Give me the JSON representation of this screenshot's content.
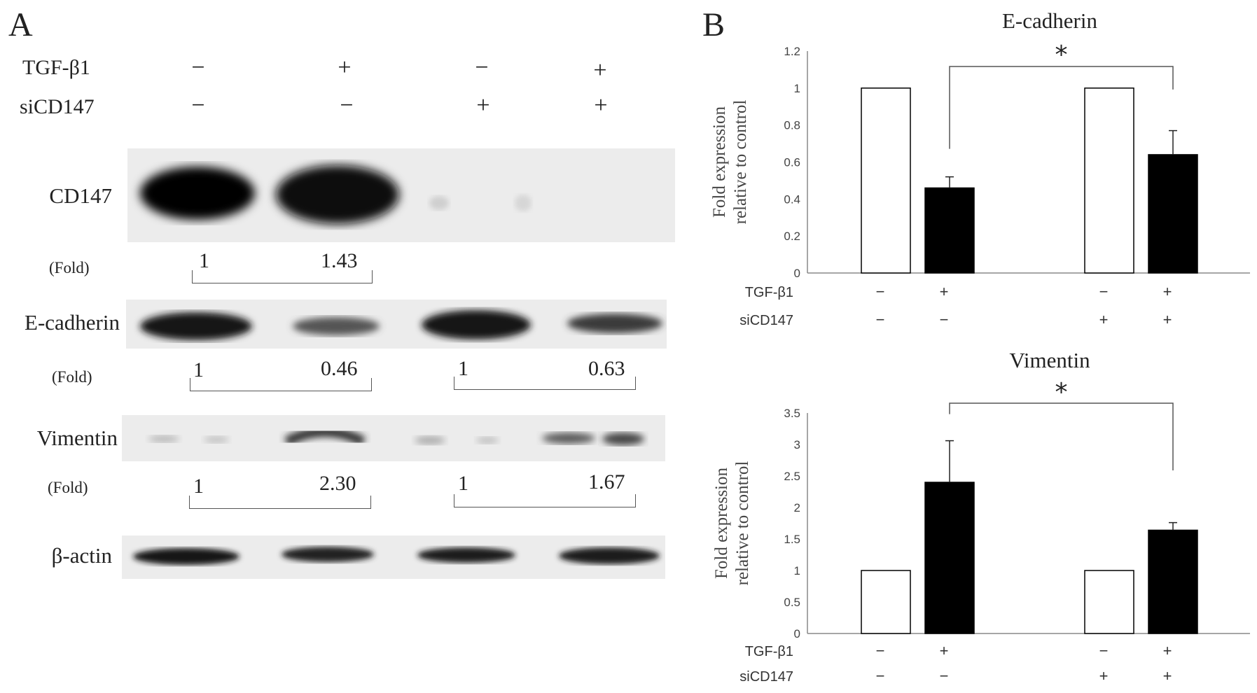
{
  "panel_a": {
    "letter": "A",
    "conditions": [
      {
        "label": "TGF-β1",
        "signs": [
          "−",
          "+",
          "−",
          "+"
        ]
      },
      {
        "label": "siCD147",
        "signs": [
          "−",
          "−",
          "+",
          "+"
        ]
      }
    ],
    "blots": [
      {
        "label": "CD147",
        "fold_label": "(Fold)",
        "fold_groups": [
          [
            "1",
            "1.43"
          ]
        ]
      },
      {
        "label": "E-cadherin",
        "fold_label": "(Fold)",
        "fold_groups": [
          [
            "1",
            "0.46"
          ],
          [
            "1",
            "0.63"
          ]
        ]
      },
      {
        "label": "Vimentin",
        "fold_label": "(Fold)",
        "fold_groups": [
          [
            "1",
            "2.30"
          ],
          [
            "1",
            "1.67"
          ]
        ]
      },
      {
        "label": "β-actin"
      }
    ]
  },
  "panel_b": {
    "letter": "B"
  },
  "chart_data": [
    {
      "type": "bar",
      "title": "E-cadherin",
      "ylabel_line1": "Fold expression",
      "ylabel_line2": "relative to control",
      "ylim": [
        0,
        1.2
      ],
      "yticks": [
        "0",
        "0.2",
        "0.4",
        "0.6",
        "0.8",
        "1",
        "1.2"
      ],
      "values": [
        1,
        0.46,
        1,
        0.64
      ],
      "errors": [
        0,
        0.06,
        0,
        0.13
      ],
      "bar_colors": [
        "#ffffff",
        "#000000",
        "#ffffff",
        "#000000"
      ],
      "significance": "*",
      "condition_rows": [
        {
          "label": "TGF-β1",
          "signs": [
            "−",
            "+",
            "−",
            "+"
          ]
        },
        {
          "label": "siCD147",
          "signs": [
            "−",
            "−",
            "+",
            "+"
          ]
        }
      ]
    },
    {
      "type": "bar",
      "title": "Vimentin",
      "ylabel_line1": "Fold expression",
      "ylabel_line2": "relative to control",
      "ylim": [
        0,
        3.5
      ],
      "yticks": [
        "0",
        "0.5",
        "1",
        "1.5",
        "2",
        "2.5",
        "3",
        "3.5"
      ],
      "values": [
        1,
        2.4,
        1,
        1.64
      ],
      "errors": [
        0,
        0.66,
        0,
        0.12
      ],
      "bar_colors": [
        "#ffffff",
        "#000000",
        "#ffffff",
        "#000000"
      ],
      "significance": "*",
      "condition_rows": [
        {
          "label": "TGF-β1",
          "signs": [
            "−",
            "+",
            "−",
            "+"
          ]
        },
        {
          "label": "siCD147",
          "signs": [
            "−",
            "−",
            "+",
            "+"
          ]
        }
      ]
    }
  ]
}
